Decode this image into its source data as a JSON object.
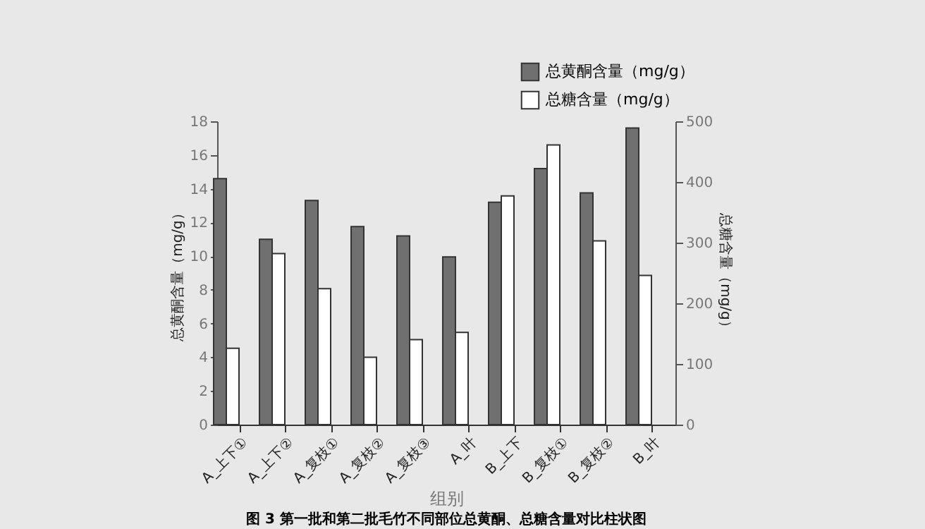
{
  "chart_data": {
    "type": "bar",
    "xlabel": "组别",
    "ylabel": "总黄酮含量（mg/g）",
    "y2label": "总糖含量（mg/g）",
    "annotations": [
      "图 3 第一批和第二批毛竹不同部位总黄酮、总糖含量对比柱状图"
    ],
    "categories": [
      "A_上下①",
      "A_上下②",
      "A_复枝①",
      "A_复枝②",
      "A_复枝③",
      "A_叶",
      "B_上下",
      "B_复枝①",
      "B_复枝②",
      "B_叶"
    ],
    "series": [
      {
        "name": "总黄酮含量（mg/g）",
        "color": "#707070",
        "values": [
          14.6,
          11.0,
          13.3,
          11.75,
          11.2,
          9.95,
          13.2,
          15.2,
          13.75,
          17.6
        ]
      },
      {
        "name": "总糖含量（mg/g）",
        "color": "#ffffff",
        "axis": "y2",
        "values": [
          126,
          282,
          224,
          111,
          140,
          152,
          377,
          461,
          303,
          246
        ]
      }
    ],
    "ylim": [
      0,
      18
    ],
    "yticks": [
      0,
      2,
      4,
      6,
      8,
      10,
      12,
      14,
      16,
      18
    ],
    "y2lim": [
      0,
      500
    ],
    "y2ticks": [
      0,
      100,
      200,
      300,
      400,
      500
    ],
    "legend": "top right",
    "grid": false
  }
}
